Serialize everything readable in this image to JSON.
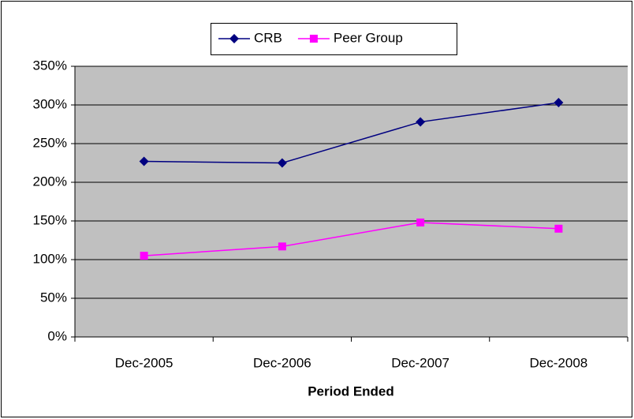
{
  "chart_data": {
    "type": "line",
    "x_label": "Period Ended",
    "categories": [
      "Dec-2005",
      "Dec-2006",
      "Dec-2007",
      "Dec-2008"
    ],
    "series": [
      {
        "name": "CRB",
        "color": "#000080",
        "marker": "diamond",
        "values": [
          227,
          225,
          278,
          303
        ]
      },
      {
        "name": "Peer Group",
        "color": "#ff00ff",
        "marker": "square",
        "values": [
          105,
          117,
          148,
          140
        ]
      }
    ],
    "ylim": [
      0,
      350
    ],
    "yticks": [
      {
        "value": 0,
        "label": "0%"
      },
      {
        "value": 50,
        "label": "50%"
      },
      {
        "value": 100,
        "label": "100%"
      },
      {
        "value": 150,
        "label": "150%"
      },
      {
        "value": 200,
        "label": "200%"
      },
      {
        "value": 250,
        "label": "250%"
      },
      {
        "value": 300,
        "label": "300%"
      },
      {
        "value": 350,
        "label": "350%"
      }
    ],
    "grid": true,
    "legend": "top"
  }
}
